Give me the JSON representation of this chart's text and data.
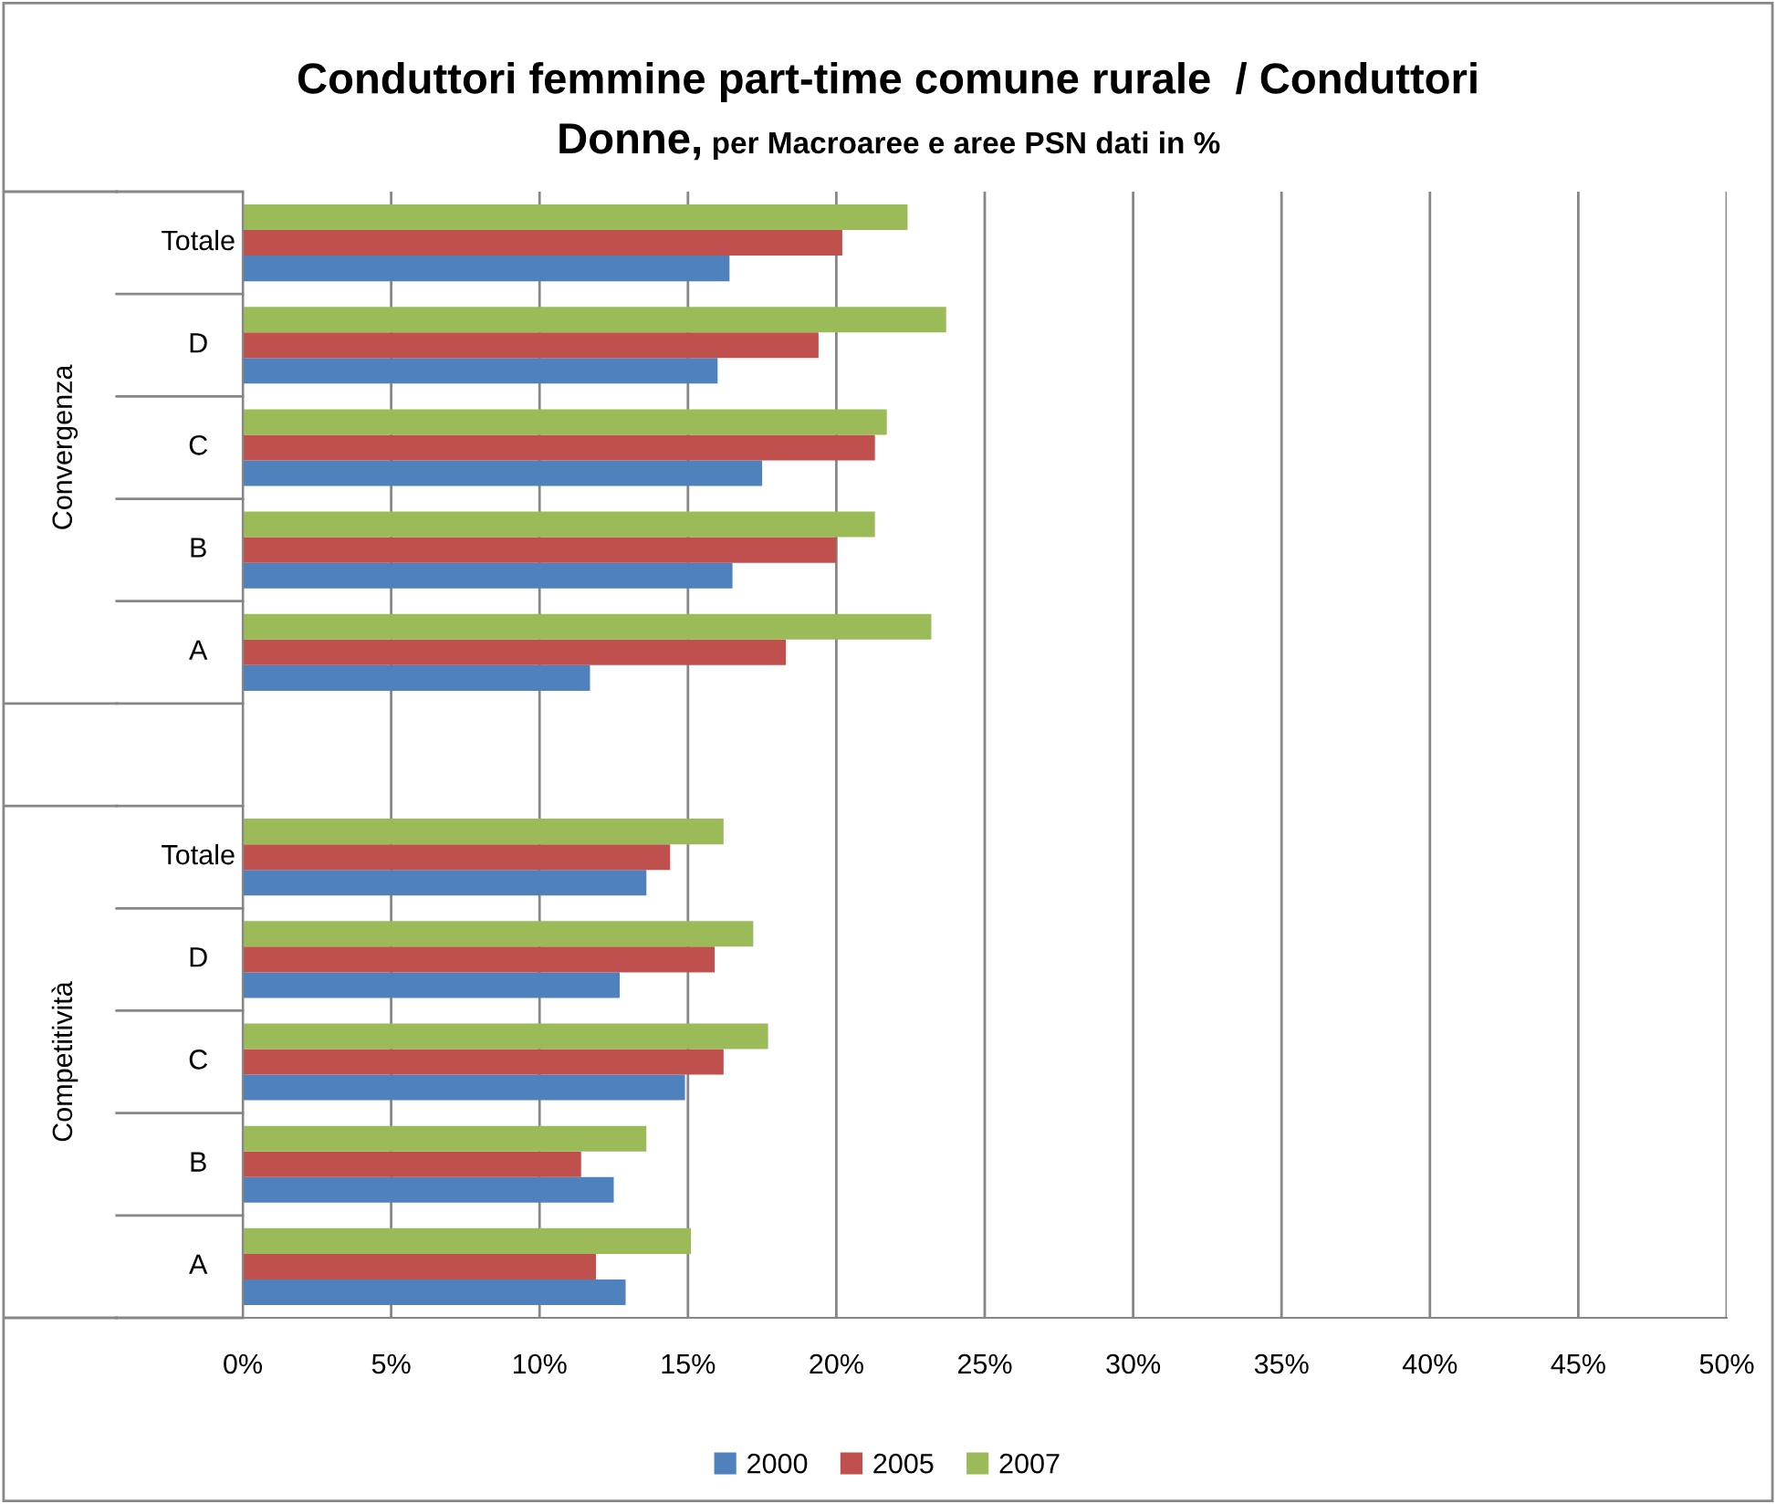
{
  "chart_data": {
    "type": "bar",
    "orientation": "horizontal",
    "title": "Conduttori femmine part-time comune rurale  / Conduttori\nDonne,",
    "subtitle": "per Macroaree e aree PSN dati in %",
    "categories": [
      "Totale",
      "D",
      "C",
      "B",
      "A",
      null,
      "Totale",
      "D",
      "C",
      "B",
      "A"
    ],
    "series": [
      {
        "name": "2000",
        "color": "#4f81bd",
        "values": [
          16.4,
          16.0,
          17.5,
          16.5,
          11.7,
          null,
          13.6,
          12.7,
          14.9,
          12.5,
          12.9
        ]
      },
      {
        "name": "2005",
        "color": "#c0504d",
        "values": [
          20.2,
          19.4,
          21.3,
          20.0,
          18.3,
          null,
          14.4,
          15.9,
          16.2,
          11.4,
          11.9
        ]
      },
      {
        "name": "2007",
        "color": "#9bbb59",
        "values": [
          22.4,
          23.7,
          21.7,
          21.3,
          23.2,
          null,
          16.2,
          17.2,
          17.7,
          13.6,
          15.1
        ]
      }
    ],
    "annotations": [
      "Convergenza",
      "Competitività"
    ],
    "xlim": [
      0,
      50
    ],
    "xticks": [
      {
        "value": 0,
        "label": "0%"
      },
      {
        "value": 5,
        "label": "5%"
      },
      {
        "value": 10,
        "label": "10%"
      },
      {
        "value": 15,
        "label": "15%"
      },
      {
        "value": 20,
        "label": "20%"
      },
      {
        "value": 25,
        "label": "25%"
      },
      {
        "value": 30,
        "label": "30%"
      },
      {
        "value": 35,
        "label": "35%"
      },
      {
        "value": 40,
        "label": "40%"
      },
      {
        "value": 45,
        "label": "45%"
      },
      {
        "value": 50,
        "label": "50%"
      }
    ],
    "grid": "x",
    "legend": "bottom"
  }
}
